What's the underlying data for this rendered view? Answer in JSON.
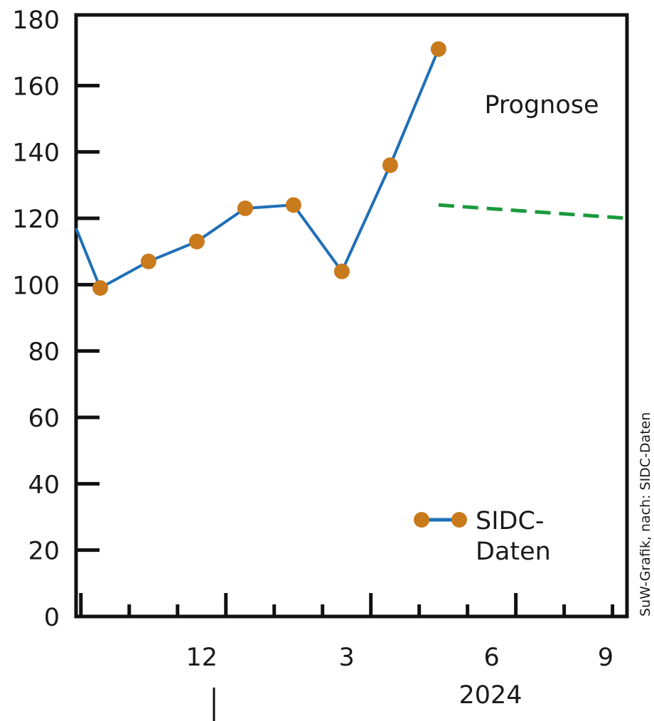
{
  "chart_data": {
    "type": "line",
    "title": "",
    "xlabel": "",
    "ylabel": "",
    "ylim": [
      0,
      180
    ],
    "xlim": [
      9.9,
      21.3
    ],
    "y_ticks": [
      "0",
      "20",
      "40",
      "60",
      "80",
      "100",
      "120",
      "140",
      "160",
      "180"
    ],
    "x_tick_labels": [
      {
        "x": 12.5,
        "label": "12"
      },
      {
        "x": 15.5,
        "label": "3"
      },
      {
        "x": 18.5,
        "label": "6"
      },
      {
        "x": 21.5,
        "label": "9"
      }
    ],
    "year_label": "2024",
    "series": [
      {
        "name": "SIDC-Daten",
        "color": "#1f6fb8",
        "marker_color": "#c97a1c",
        "x": [
          9.9,
          10.4,
          11.4,
          12.4,
          13.4,
          14.4,
          15.4,
          16.4,
          17.4
        ],
        "y": [
          117,
          99,
          107,
          113,
          123,
          124,
          104,
          136,
          171
        ],
        "markers_from": 1
      },
      {
        "name": "Prognose",
        "color": "#1a9a3c",
        "dashed": true,
        "x": [
          17.4,
          21.3
        ],
        "y": [
          124,
          120
        ]
      }
    ],
    "annotations": [
      "Prognose"
    ],
    "legend": {
      "label_line1": "SIDC-",
      "label_line2": "Daten",
      "position": "bottom-right"
    },
    "credit": "SuW-Grafik, nach: SIDC-Daten",
    "grid": false
  }
}
